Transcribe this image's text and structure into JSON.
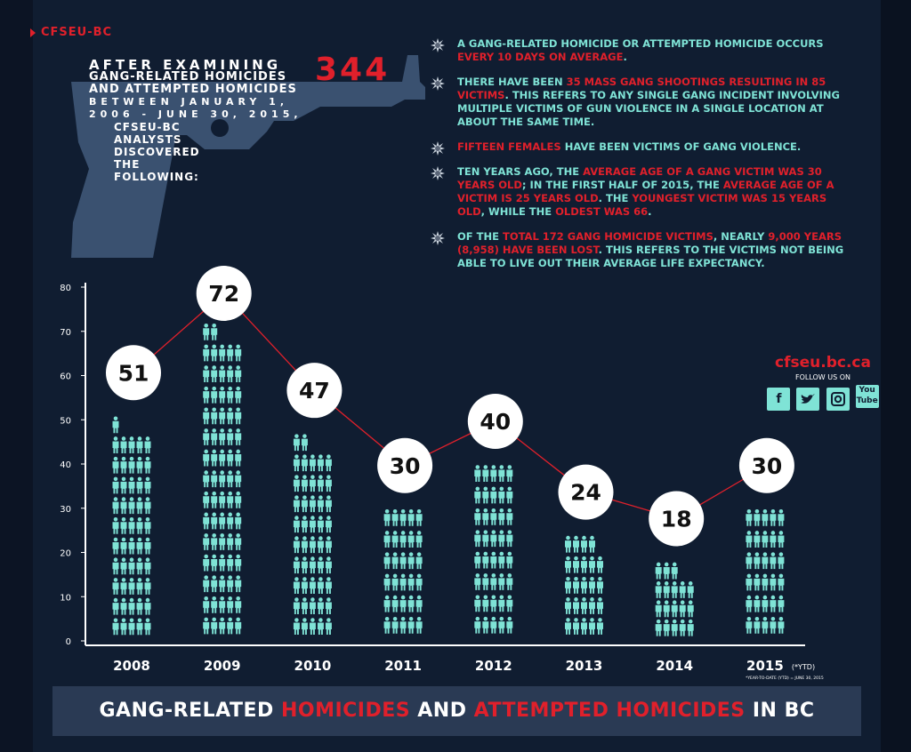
{
  "brand": "CFSEU-BC",
  "intro": {
    "line1": "After examining",
    "line2": "gang-related homicides and attempted homicides",
    "line3": "between January 1, 2006 - June 30, 2015,",
    "line4": "CFSEU-BC analysts discovered the following:",
    "big_number": "344"
  },
  "facts": [
    [
      {
        "t": "A gang-related homicide or attempted homicide occurs "
      },
      {
        "t": "every 10 days on average",
        "r": true
      },
      {
        "t": "."
      }
    ],
    [
      {
        "t": "There have been "
      },
      {
        "t": "35 mass gang shootings resulting in 85 victims",
        "r": true
      },
      {
        "t": ". This refers to any single gang incident involving multiple victims of gun violence in a single location at about the same time."
      }
    ],
    [
      {
        "t": "Fifteen females",
        "r": true
      },
      {
        "t": " have been victims of gang violence."
      }
    ],
    [
      {
        "t": "Ten years ago, the "
      },
      {
        "t": "average age of a gang victim was 30 years old",
        "r": true
      },
      {
        "t": "; in the first half of 2015, the "
      },
      {
        "t": "average age of a victim is 25 years old",
        "r": true
      },
      {
        "t": ". The "
      },
      {
        "t": "youngest victim was 15 years old",
        "r": true
      },
      {
        "t": ", while the "
      },
      {
        "t": "oldest was 66",
        "r": true
      },
      {
        "t": "."
      }
    ],
    [
      {
        "t": "Of the "
      },
      {
        "t": "total 172 gang homicide victims",
        "r": true
      },
      {
        "t": ", nearly "
      },
      {
        "t": "9,000 years (8,958) have been lost",
        "r": true
      },
      {
        "t": ". This refers to the victims not being able to live out their average life expectancy."
      }
    ]
  ],
  "social": {
    "site": "cfseu.bc.ca",
    "follow": "FOLLOW US ON",
    "icons": [
      "facebook-icon",
      "twitter-icon",
      "instagram-icon",
      "youtube-icon"
    ],
    "facebook_glyph": "f",
    "youtube_glyph": "You Tube"
  },
  "chart_data": {
    "type": "bar",
    "categories": [
      "2008",
      "2009",
      "2010",
      "2011",
      "2012",
      "2013",
      "2014",
      "2015"
    ],
    "values": [
      51,
      72,
      47,
      30,
      40,
      24,
      18,
      30
    ],
    "yticks": [
      0,
      10,
      20,
      30,
      40,
      50,
      60,
      70,
      80
    ],
    "ylim": [
      0,
      80
    ],
    "category_suffix_2015": "(*YTD)",
    "footnote": "*YEAR-TO-DATE (YTD) = JUNE 30, 2015",
    "title": [
      {
        "t": "Gang-related "
      },
      {
        "t": "homicides",
        "r": true
      },
      {
        "t": " and "
      },
      {
        "t": "attempted homicides",
        "r": true
      },
      {
        "t": " in BC"
      }
    ]
  },
  "colors": {
    "background": "#101d31",
    "accent_red": "#e0202b",
    "teal": "#7fe3d6",
    "gun": "#3a5170",
    "footer": "#2a3a54"
  }
}
